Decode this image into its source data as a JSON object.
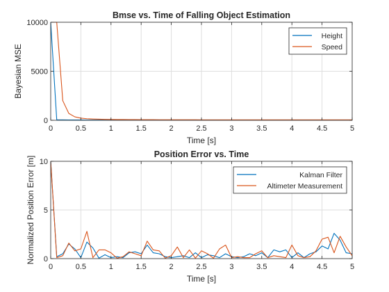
{
  "chart_data": [
    {
      "type": "line",
      "title": "Bmse vs. Time of Falling Object Estimation",
      "xlabel": "Time [s]",
      "ylabel": "Bayesian MSE",
      "xlim": [
        0,
        5
      ],
      "ylim": [
        0,
        10000
      ],
      "xticks": [
        0,
        0.5,
        1,
        1.5,
        2,
        2.5,
        3,
        3.5,
        4,
        4.5,
        5
      ],
      "xtick_labels": [
        "0",
        "0.5",
        "1",
        "1.5",
        "2",
        "2.5",
        "3",
        "3.5",
        "4",
        "4.5",
        "5"
      ],
      "yticks": [
        0,
        5000,
        10000
      ],
      "ytick_labels": [
        "0",
        "5000",
        "10000"
      ],
      "grid": true,
      "legend_position": "top-right",
      "x": [
        0,
        0.1,
        0.2,
        0.3,
        0.4,
        0.5,
        0.6,
        0.7,
        0.8,
        0.9,
        1,
        1.1,
        1.2,
        1.3,
        1.4,
        1.5,
        1.6,
        1.7,
        1.8,
        1.9,
        2,
        2.1,
        2.2,
        2.3,
        2.4,
        2.5,
        2.6,
        2.7,
        2.8,
        2.9,
        3,
        3.1,
        3.2,
        3.3,
        3.4,
        3.5,
        3.6,
        3.7,
        3.8,
        3.9,
        4,
        4.1,
        4.2,
        4.3,
        4.4,
        4.5,
        4.6,
        4.7,
        4.8,
        4.9,
        5
      ],
      "series": [
        {
          "name": "Height",
          "color": "#0072BD",
          "values": [
            10000,
            50,
            40,
            35,
            30,
            28,
            26,
            25,
            24,
            23,
            22,
            22,
            21,
            21,
            20,
            20,
            20,
            20,
            20,
            20,
            20,
            20,
            20,
            20,
            20,
            20,
            20,
            20,
            20,
            20,
            20,
            20,
            20,
            20,
            20,
            20,
            20,
            20,
            20,
            20,
            20,
            20,
            20,
            20,
            20,
            20,
            20,
            20,
            20,
            20,
            20
          ]
        },
        {
          "name": "Speed",
          "color": "#D95319",
          "values": [
            10000,
            10000,
            2000,
            700,
            350,
            220,
            160,
            130,
            110,
            95,
            85,
            78,
            72,
            68,
            64,
            61,
            58,
            56,
            54,
            52,
            50,
            49,
            48,
            47,
            46,
            45,
            44,
            44,
            43,
            43,
            42,
            42,
            41,
            41,
            41,
            40,
            40,
            40,
            40,
            40,
            40,
            40,
            40,
            40,
            40,
            40,
            40,
            40,
            40,
            40,
            40
          ]
        }
      ]
    },
    {
      "type": "line",
      "title": "Position Error vs. Time",
      "xlabel": "Time [s]",
      "ylabel": "Normalized Position Error [m]",
      "xlim": [
        0,
        5
      ],
      "ylim": [
        0,
        10
      ],
      "xticks": [
        0,
        0.5,
        1,
        1.5,
        2,
        2.5,
        3,
        3.5,
        4,
        4.5,
        5
      ],
      "xtick_labels": [
        "0",
        "0.5",
        "1",
        "1.5",
        "2",
        "2.5",
        "3",
        "3.5",
        "4",
        "4.5",
        "5"
      ],
      "yticks": [
        0,
        5,
        10
      ],
      "ytick_labels": [
        "0",
        "5",
        "10"
      ],
      "grid": true,
      "legend_position": "top-right",
      "x": [
        0,
        0.1,
        0.2,
        0.3,
        0.4,
        0.5,
        0.6,
        0.7,
        0.8,
        0.9,
        1,
        1.1,
        1.2,
        1.3,
        1.4,
        1.5,
        1.6,
        1.7,
        1.8,
        1.9,
        2,
        2.1,
        2.2,
        2.3,
        2.4,
        2.5,
        2.6,
        2.7,
        2.8,
        2.9,
        3,
        3.1,
        3.2,
        3.3,
        3.4,
        3.5,
        3.6,
        3.7,
        3.8,
        3.9,
        4,
        4.1,
        4.2,
        4.3,
        4.4,
        4.5,
        4.6,
        4.7,
        4.8,
        4.9,
        5
      ],
      "series": [
        {
          "name": "Kalman Filter",
          "color": "#0072BD",
          "values": [
            10,
            0.2,
            0.5,
            1.5,
            1.0,
            0.1,
            1.7,
            1.1,
            0.05,
            0.4,
            0.1,
            0.2,
            0.1,
            0.6,
            0.7,
            0.5,
            1.4,
            0.6,
            0.5,
            0.2,
            0.1,
            0.2,
            0.3,
            0.1,
            0.6,
            0.1,
            0.4,
            0.3,
            0.1,
            0.5,
            0.2,
            0.1,
            0.2,
            0.5,
            0.3,
            0.6,
            0.1,
            0.9,
            0.7,
            0.9,
            0.1,
            0.6,
            0.1,
            0.5,
            0.7,
            1.3,
            1.0,
            2.6,
            1.9,
            0.6,
            0.5
          ]
        },
        {
          "name": "Altimeter Measurement",
          "color": "#D95319",
          "values": [
            10,
            0.1,
            0.3,
            1.6,
            0.8,
            1.0,
            2.8,
            0.1,
            0.9,
            0.9,
            0.6,
            0.05,
            0.2,
            0.7,
            0.5,
            0.3,
            1.8,
            0.9,
            0.8,
            0.05,
            0.3,
            1.2,
            0.1,
            0.9,
            0.05,
            0.8,
            0.5,
            0.05,
            1.0,
            1.4,
            0.1,
            0.2,
            0.1,
            0.1,
            0.5,
            0.8,
            0.1,
            0.3,
            0.2,
            0.1,
            1.4,
            0.3,
            0.1,
            0.2,
            0.8,
            2.0,
            2.2,
            0.6,
            2.3,
            1.2,
            0.3
          ]
        }
      ]
    }
  ]
}
